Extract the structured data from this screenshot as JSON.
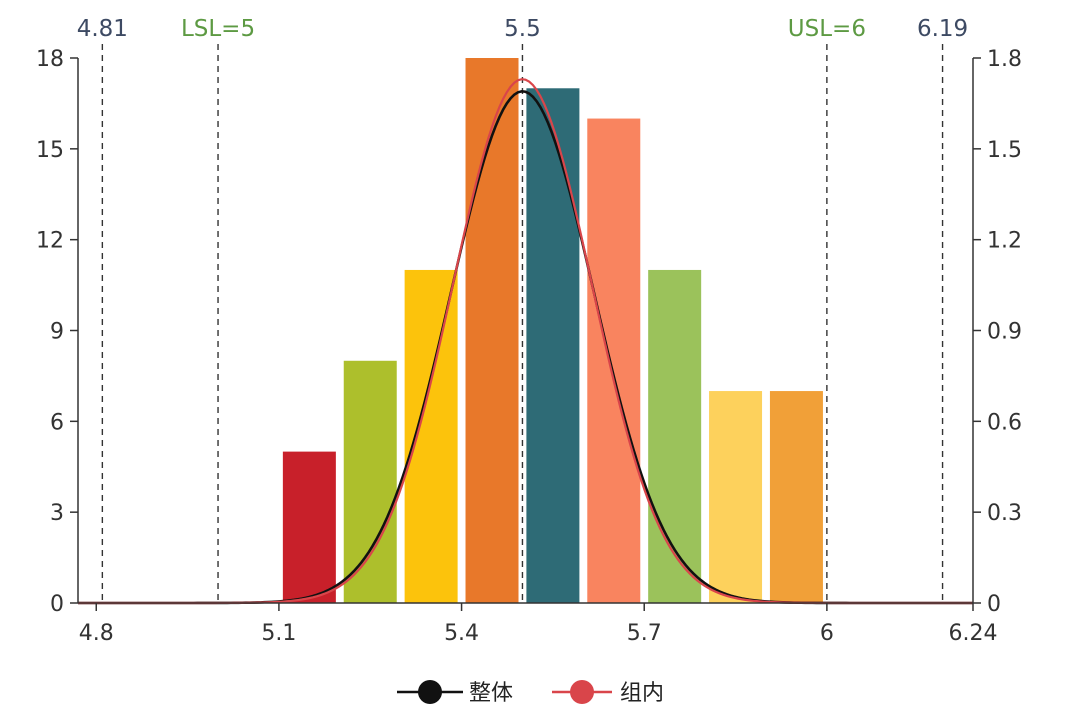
{
  "chart_data": {
    "type": "bar",
    "bars": {
      "centers": [
        5.15,
        5.25,
        5.35,
        5.45,
        5.55,
        5.65,
        5.75,
        5.85,
        5.95
      ],
      "values": [
        5,
        8,
        11,
        18,
        17,
        16,
        11,
        7,
        7
      ],
      "colors": [
        "#c8202a",
        "#adbf2c",
        "#fcc30c",
        "#e8782a",
        "#2e6b76",
        "#f9845f",
        "#9bc25b",
        "#fdd15c",
        "#f1a038"
      ]
    },
    "x_axis": {
      "range": [
        4.77,
        6.24
      ],
      "tick_values": [
        4.8,
        5.1,
        5.4,
        5.7,
        6,
        6.24
      ],
      "tick_labels": [
        "4.8",
        "5.1",
        "5.4",
        "5.7",
        "6",
        "6.24"
      ]
    },
    "y_left": {
      "range": [
        0,
        18
      ],
      "tick_values": [
        0,
        3,
        6,
        9,
        12,
        15,
        18
      ],
      "tick_labels": [
        "0",
        "3",
        "6",
        "9",
        "12",
        "15",
        "18"
      ]
    },
    "y_right": {
      "range": [
        0,
        1.8
      ],
      "tick_values": [
        0,
        0.3,
        0.6,
        0.9,
        1.2,
        1.5,
        1.8
      ],
      "tick_labels": [
        "0",
        "0.3",
        "0.6",
        "0.9",
        "1.2",
        "1.5",
        "1.8"
      ]
    },
    "reference_lines": [
      {
        "x": 4.81,
        "label": "4.81",
        "color": "#3d4a63"
      },
      {
        "x": 5,
        "label": "LSL=5",
        "color": "#5d9a43"
      },
      {
        "x": 5.5,
        "label": "5.5",
        "color": "#3d4a63"
      },
      {
        "x": 6,
        "label": "USL=6",
        "color": "#5d9a43"
      },
      {
        "x": 6.19,
        "label": "6.19",
        "color": "#3d4a63"
      }
    ],
    "series": [
      {
        "name": "整体",
        "type": "line",
        "color": "#111111",
        "mean": 5.5,
        "sigma": 0.1175,
        "peak": 1.69
      },
      {
        "name": "组内",
        "type": "line",
        "color": "#d9454a",
        "mean": 5.5,
        "sigma": 0.1145,
        "peak": 1.73
      }
    ],
    "grid": false,
    "legend_position": "bottom-center"
  }
}
